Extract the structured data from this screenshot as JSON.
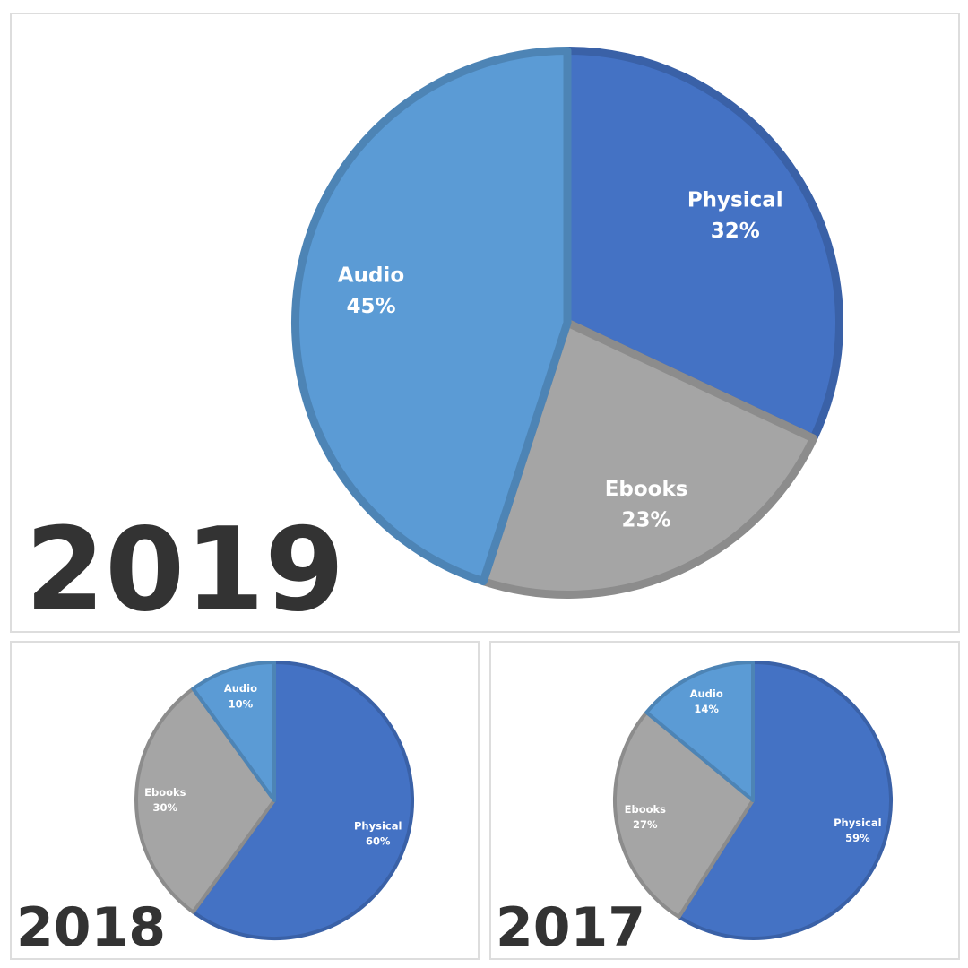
{
  "chart_data": [
    {
      "type": "pie",
      "title": "2019",
      "categories": [
        "Physical",
        "Ebooks",
        "Audio"
      ],
      "values": [
        32,
        23,
        45
      ],
      "value_labels": [
        "32%",
        "23%",
        "45%"
      ],
      "colors": [
        "#4472c4",
        "#a5a5a5",
        "#5b9bd5"
      ]
    },
    {
      "type": "pie",
      "title": "2018",
      "categories": [
        "Physical",
        "Ebooks",
        "Audio"
      ],
      "values": [
        60,
        30,
        10
      ],
      "value_labels": [
        "60%",
        "30%",
        "10%"
      ],
      "colors": [
        "#4472c4",
        "#a5a5a5",
        "#5b9bd5"
      ]
    },
    {
      "type": "pie",
      "title": "2017",
      "categories": [
        "Physical",
        "Ebooks",
        "Audio"
      ],
      "values": [
        59,
        27,
        14
      ],
      "value_labels": [
        "59%",
        "27%",
        "14%"
      ],
      "colors": [
        "#4472c4",
        "#a5a5a5",
        "#5b9bd5"
      ]
    }
  ]
}
